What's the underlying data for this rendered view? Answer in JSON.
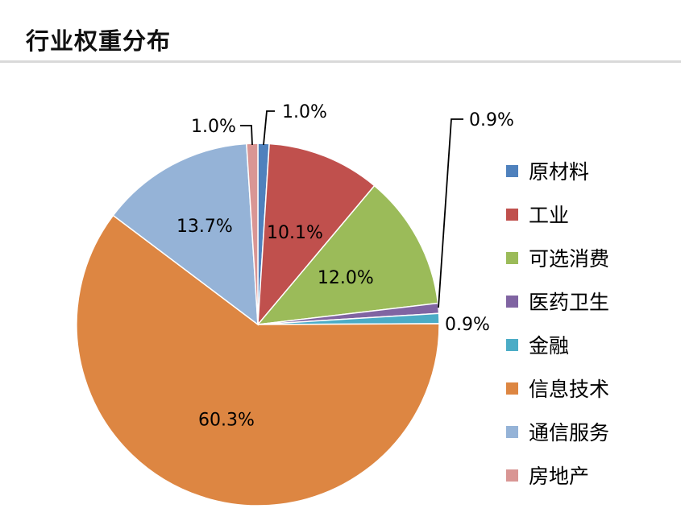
{
  "header": {
    "title": "行业权重分布"
  },
  "chart_data": {
    "type": "pie",
    "title": "",
    "legend_position": "right",
    "slices": [
      {
        "name": "原材料",
        "value": 1.0,
        "label": "1.0%",
        "color": "#4F81BD"
      },
      {
        "name": "工业",
        "value": 10.1,
        "label": "10.1%",
        "color": "#C0504D"
      },
      {
        "name": "可选消费",
        "value": 12.0,
        "label": "12.0%",
        "color": "#9BBB59"
      },
      {
        "name": "医药卫生",
        "value": 0.9,
        "label": "0.9%",
        "color": "#8064A2"
      },
      {
        "name": "金融",
        "value": 0.9,
        "label": "0.9%",
        "color": "#4BACC6"
      },
      {
        "name": "信息技术",
        "value": 60.3,
        "label": "60.3%",
        "color": "#DD8642"
      },
      {
        "name": "通信服务",
        "value": 13.7,
        "label": "13.7%",
        "color": "#95B3D7"
      },
      {
        "name": "房地产",
        "value": 1.0,
        "label": "1.0%",
        "color": "#D99694"
      }
    ]
  }
}
